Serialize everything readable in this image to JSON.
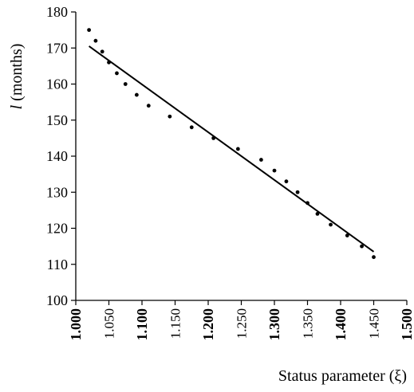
{
  "chart_data": {
    "type": "scatter",
    "xlabel": "Status parameter (ξ)",
    "ylabel_italic": "l",
    "ylabel_rest": " (months)",
    "xlim": [
      1.0,
      1.5
    ],
    "ylim": [
      100,
      180
    ],
    "grid": false,
    "x_ticks": [
      {
        "value": 1.0,
        "label": "1.000",
        "major": true
      },
      {
        "value": 1.05,
        "label": "1.050",
        "major": false
      },
      {
        "value": 1.1,
        "label": "1.100",
        "major": true
      },
      {
        "value": 1.15,
        "label": "1.150",
        "major": false
      },
      {
        "value": 1.2,
        "label": "1.200",
        "major": true
      },
      {
        "value": 1.25,
        "label": "1.250",
        "major": false
      },
      {
        "value": 1.3,
        "label": "1.300",
        "major": true
      },
      {
        "value": 1.35,
        "label": "1.350",
        "major": false
      },
      {
        "value": 1.4,
        "label": "1.400",
        "major": true
      },
      {
        "value": 1.45,
        "label": "1.450",
        "major": false
      },
      {
        "value": 1.5,
        "label": "1.500",
        "major": true
      }
    ],
    "y_ticks": [
      100,
      110,
      120,
      130,
      140,
      150,
      160,
      170,
      180
    ],
    "series": [
      {
        "kind": "points",
        "x": [
          1.02,
          1.03,
          1.04,
          1.05,
          1.062,
          1.075,
          1.092,
          1.11,
          1.142,
          1.175,
          1.208,
          1.245,
          1.28,
          1.3,
          1.318,
          1.335,
          1.35,
          1.365,
          1.385,
          1.41,
          1.432,
          1.45
        ],
        "y": [
          175,
          172,
          169,
          166,
          163,
          160,
          157,
          154,
          151,
          148,
          145,
          142,
          139,
          136,
          133,
          130,
          127,
          124,
          121,
          118,
          115,
          112
        ]
      },
      {
        "kind": "line",
        "x": [
          1.02,
          1.45
        ],
        "y": [
          170.5,
          113.5
        ]
      }
    ]
  }
}
